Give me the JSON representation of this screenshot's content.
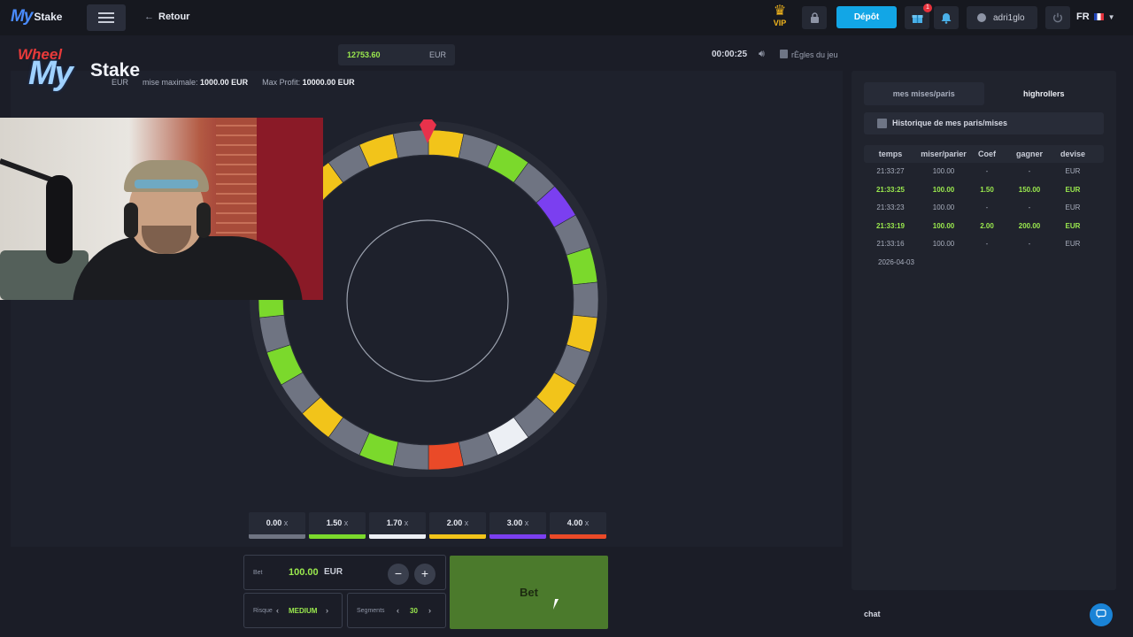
{
  "nav": {
    "logo_my": "My",
    "logo_stake": "Stake",
    "back_label": "Retour",
    "vip_label": "VIP",
    "deposit_label": "Dépôt",
    "gift_count": "1",
    "username": "adri1glo",
    "language": "FR"
  },
  "stream_overlay": {
    "game_name": "Wheel",
    "logo_my": "My",
    "logo_stake": "Stake"
  },
  "game": {
    "balance": "12753.60",
    "balance_currency": "EUR",
    "timer": "00:00:25",
    "rules_label": "rÈgles du jeu",
    "min_bet_currency": "EUR",
    "max_bet_label": "mise maximale:",
    "max_bet_value": "1000.00 EUR",
    "max_profit_label": "Max Profit:",
    "max_profit_value": "10000.00 EUR"
  },
  "wheel": {
    "segments": [
      "yellow",
      "grey",
      "green",
      "grey",
      "purple",
      "grey",
      "green",
      "grey",
      "yellow",
      "grey",
      "yellow",
      "grey",
      "white",
      "grey",
      "red",
      "grey",
      "green",
      "grey",
      "yellow",
      "grey",
      "green",
      "grey",
      "green",
      "grey",
      "green",
      "grey",
      "yellow",
      "grey",
      "yellow",
      "grey"
    ],
    "colors": {
      "grey": "#6f7482",
      "green": "#7bd92c",
      "yellow": "#f2c41a",
      "purple": "#7b3ff0",
      "white": "#eceff4",
      "red": "#ea4a28"
    },
    "pointer_color": "#e8324b"
  },
  "multipliers": [
    {
      "value": "0.00",
      "x": "x",
      "color": "#6f7482"
    },
    {
      "value": "1.50",
      "x": "x",
      "color": "#7bd92c"
    },
    {
      "value": "1.70",
      "x": "x",
      "color": "#eceff4"
    },
    {
      "value": "2.00",
      "x": "x",
      "color": "#f2c41a"
    },
    {
      "value": "3.00",
      "x": "x",
      "color": "#7b3ff0"
    },
    {
      "value": "4.00",
      "x": "x",
      "color": "#ea4a28"
    }
  ],
  "controls": {
    "bet_label": "Bet",
    "bet_amount": "100.00",
    "bet_currency": "EUR",
    "minus": "−",
    "plus": "+",
    "risk_label": "Risque",
    "risk_value": "MEDIUM",
    "segments_label": "Segments",
    "segments_value": "30",
    "bet_button": "Bet"
  },
  "sidebar": {
    "tabs": [
      {
        "label": "mes mises/paris"
      },
      {
        "label": "highrollers"
      }
    ],
    "history_title": "Historique de mes paris/mises",
    "columns": [
      "temps",
      "miser/parier",
      "Coef",
      "gagner",
      "devise"
    ],
    "rows": [
      {
        "time": "21:33:27",
        "bet": "100.00",
        "coef": "-",
        "win": "-",
        "currency": "EUR",
        "won": false
      },
      {
        "time": "21:33:25",
        "bet": "100.00",
        "coef": "1.50",
        "win": "150.00",
        "currency": "EUR",
        "won": true
      },
      {
        "time": "21:33:23",
        "bet": "100.00",
        "coef": "-",
        "win": "-",
        "currency": "EUR",
        "won": false
      },
      {
        "time": "21:33:19",
        "bet": "100.00",
        "coef": "2.00",
        "win": "200.00",
        "currency": "EUR",
        "won": true
      },
      {
        "time": "21:33:16",
        "bet": "100.00",
        "coef": "-",
        "win": "-",
        "currency": "EUR",
        "won": false
      }
    ],
    "date": "2026-04-03",
    "chat_label": "chat"
  }
}
